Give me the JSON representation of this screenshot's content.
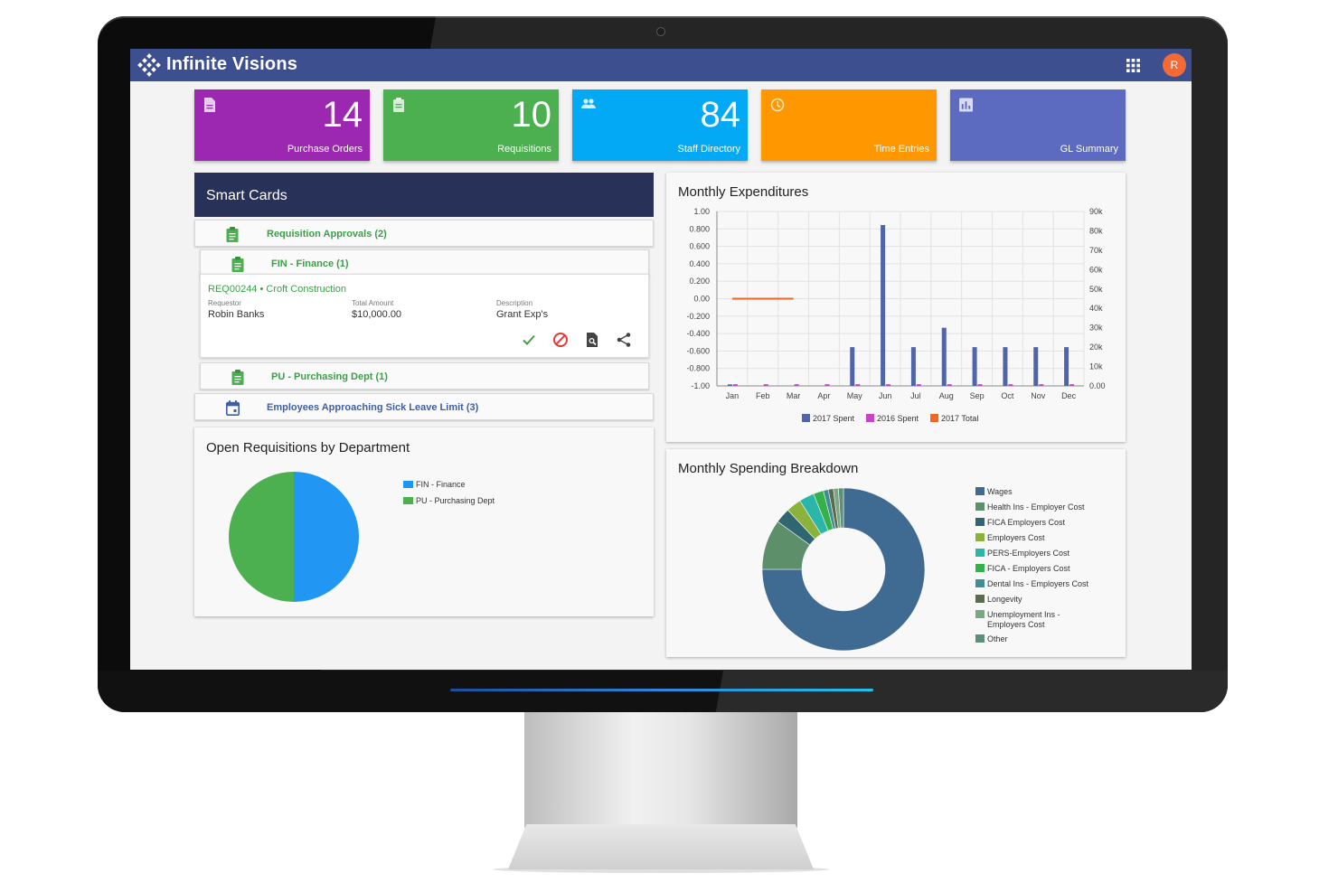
{
  "app": {
    "title": "Infinite Visions",
    "avatar_initial": "R"
  },
  "icons": {
    "logo": "diamond-dots-logo-icon",
    "apps": "apps-grid-icon"
  },
  "tiles": [
    {
      "count": "14",
      "label": "Purchase Orders",
      "color": "#9c27b0",
      "icon": "document-icon"
    },
    {
      "count": "10",
      "label": "Requisitions",
      "color": "#4caf50",
      "icon": "clipboard-icon"
    },
    {
      "count": "84",
      "label": "Staff Directory",
      "color": "#03a9f4",
      "icon": "people-icon"
    },
    {
      "count": "",
      "label": "Time Entries",
      "color": "#ff9800",
      "icon": "clock-icon"
    },
    {
      "count": "",
      "label": "GL Summary",
      "color": "#5c6bc0",
      "icon": "bar-chart-icon"
    }
  ],
  "smart_cards": {
    "title": "Smart Cards",
    "requisition_approvals": "Requisition Approvals (2)",
    "fin_group": "FIN - Finance (1)",
    "request": {
      "id_vendor": "REQ00244 • Croft Construction",
      "requestor_label": "Requestor",
      "requestor": "Robin Banks",
      "amount_label": "Total Amount",
      "amount": "$10,000.00",
      "description_label": "Description",
      "description": "Grant Exp's"
    },
    "pu_group": "PU - Purchasing Dept (1)",
    "sick_leave": "Employees Approaching Sick Leave Limit (3)"
  },
  "open_requisitions": {
    "title": "Open Requisitions by Department",
    "chart_data": {
      "type": "pie",
      "categories": [
        "FIN - Finance",
        "PU - Purchasing Dept"
      ],
      "values": [
        1,
        1
      ],
      "colors": [
        "#2196f3",
        "#4caf50"
      ]
    }
  },
  "monthly_expenditures": {
    "title": "Monthly Expenditures",
    "chart_data": {
      "type": "bar",
      "categories": [
        "Jan",
        "Feb",
        "Mar",
        "Apr",
        "May",
        "Jun",
        "Jul",
        "Aug",
        "Sep",
        "Oct",
        "Nov",
        "Dec"
      ],
      "left_ticks": [
        "1.00",
        "0.800",
        "0.600",
        "0.400",
        "0.200",
        "0.00",
        "-0.200",
        "-0.400",
        "-0.600",
        "-0.800",
        "-1.00"
      ],
      "right_ticks": [
        "90k",
        "80k",
        "70k",
        "60k",
        "50k",
        "40k",
        "30k",
        "20k",
        "10k",
        "0.00"
      ],
      "ylim_right": [
        0,
        90000
      ],
      "series": [
        {
          "name": "2017 Spent",
          "color": "#5064a8",
          "values": [
            800,
            0,
            0,
            0,
            20000,
            83000,
            20000,
            30000,
            20000,
            20000,
            20000,
            20000
          ]
        },
        {
          "name": "2016 Spent",
          "color": "#c545c2",
          "values": [
            400,
            400,
            400,
            400,
            400,
            400,
            400,
            400,
            400,
            400,
            400,
            400
          ]
        },
        {
          "name": "2017 Total",
          "color": "#f26522",
          "line_value_left_axis": 0.0,
          "line_months": [
            "Jan",
            "Mar"
          ]
        }
      ],
      "grid": true,
      "legend": "bottom"
    }
  },
  "spending_breakdown": {
    "title": "Monthly Spending Breakdown",
    "chart_data": {
      "type": "pie",
      "style": "donut",
      "categories": [
        "Wages",
        "Health Ins - Employer Cost",
        "FICA Employers Cost",
        "Employers Cost",
        "PERS-Employers Cost",
        "FICA - Employers Cost",
        "Dental Ins - Employers Cost",
        "Longevity",
        "Unemployment Ins - Employers Cost",
        "Other"
      ],
      "values": [
        75,
        10,
        3,
        3,
        3,
        2,
        1,
        1,
        1,
        1
      ],
      "colors": [
        "#3f6a91",
        "#5e8f6b",
        "#2f6672",
        "#8bb23a",
        "#2ab7a9",
        "#35b04a",
        "#3d8f94",
        "#5b6b4e",
        "#7aa883",
        "#5f8f7a"
      ]
    },
    "legend_lines": {
      "unemployment_1": "Unemployment Ins -",
      "unemployment_2": "Employers Cost"
    }
  }
}
